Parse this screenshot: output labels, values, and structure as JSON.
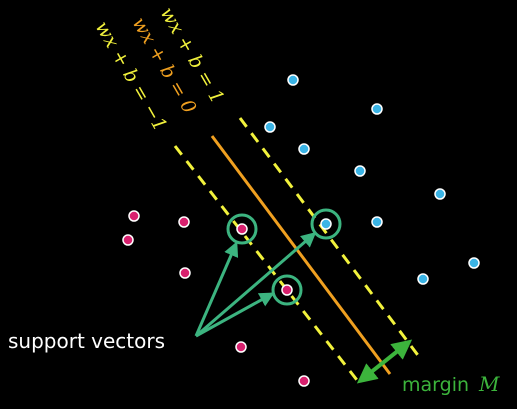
{
  "equations": {
    "plus": "wx + b = 1",
    "zero": "wx + b = 0",
    "minus": "wx + b = −1"
  },
  "labels": {
    "support_vectors": "support vectors",
    "margin": "margin",
    "margin_symbol": "M"
  },
  "colors": {
    "background": "#000000",
    "boundary_line": "#f0a020",
    "margin_lines": "#f2f23c",
    "positive_points": "#3ab4e6",
    "negative_points": "#d8206e",
    "support_circles": "#3cb480",
    "margin_arrow": "#3cb43c",
    "support_arrows": "#3cb480",
    "label_text": "#ffffff",
    "margin_text": "#3cb43c",
    "eq_plus_color": "#f2f23c",
    "eq_zero_color": "#f0a020",
    "eq_minus_color": "#f2f23c"
  }
}
